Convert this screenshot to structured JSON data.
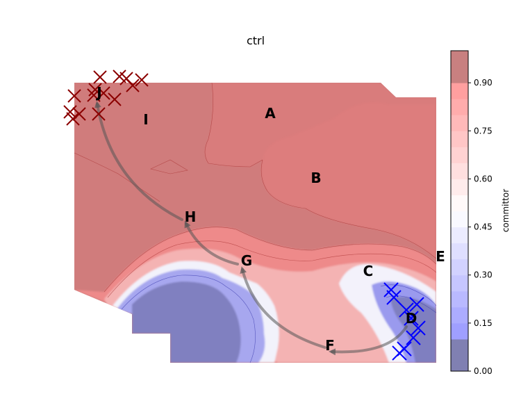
{
  "chart_data": {
    "type": "heatmap",
    "title": "ctrl",
    "colorbar": {
      "label": "committor",
      "range": [
        0,
        1
      ],
      "levels": [
        0,
        0.05,
        0.1,
        0.15,
        0.2,
        0.25,
        0.3,
        0.35,
        0.4,
        0.45,
        0.5,
        0.55,
        0.6,
        0.65,
        0.7,
        0.75,
        0.8,
        0.85,
        0.9,
        0.95,
        1.0
      ],
      "tick_values": [
        0.0,
        0.15,
        0.3,
        0.45,
        0.6,
        0.75,
        0.9
      ],
      "tick_labels": [
        "0.00",
        "0.15",
        "0.30",
        "0.45",
        "0.60",
        "0.75",
        "0.90"
      ],
      "colormap": "bwr",
      "alpha": 0.5
    },
    "axes_visible": false,
    "state_labels": [
      "A",
      "B",
      "C",
      "D",
      "E",
      "F",
      "G",
      "H",
      "I",
      "J"
    ],
    "path_order": [
      "D",
      "F",
      "G",
      "H",
      "J"
    ],
    "markers": {
      "reactant": {
        "color": "#0000ff",
        "count": 9
      },
      "product": {
        "color": "#8b0000",
        "count": 14
      }
    }
  }
}
